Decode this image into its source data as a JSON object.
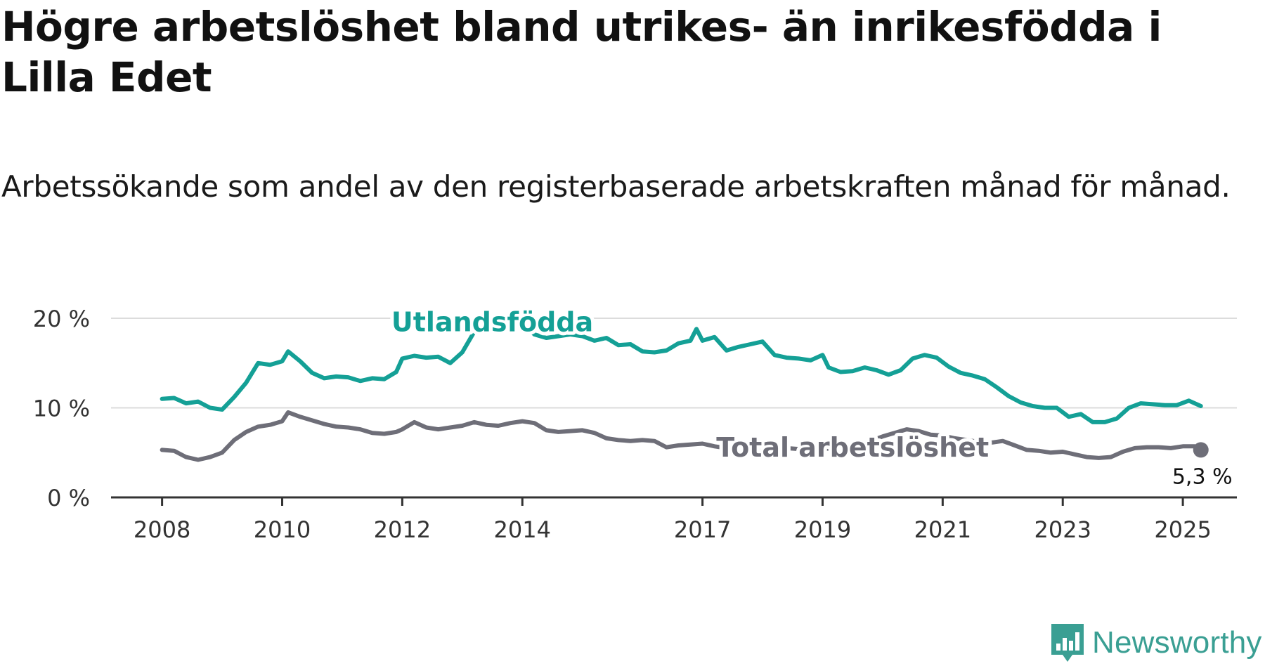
{
  "title": "Högre arbetslöshet bland utrikes- än inrikesfödda i Lilla Edet",
  "subtitle": "Arbetssökande som andel av den registerbaserade arbetskraften månad för månad.",
  "brand": {
    "name": "Newsworthy",
    "color": "#3a9f93"
  },
  "chart_data": {
    "type": "line",
    "y_ticks": [
      "20 %",
      "10 %",
      "0 %"
    ],
    "y_tick_values": [
      20,
      10,
      0
    ],
    "ylim": [
      0,
      20
    ],
    "x_tick_labels": [
      "2008",
      "2010",
      "2012",
      "2014",
      "2017",
      "2019",
      "2021",
      "2023",
      "2025"
    ],
    "x_tick_values": [
      2008.0,
      2010.0,
      2012.0,
      2014.0,
      2017.0,
      2019.0,
      2021.0,
      2023.0,
      2025.0
    ],
    "xlim": [
      2007.15,
      2025.9
    ],
    "grid": true,
    "end_label": "5,3 %",
    "series": [
      {
        "name": "Utlandsfödda",
        "color": "#14a096",
        "points": [
          [
            2008.0,
            11.0
          ],
          [
            2008.2,
            11.1
          ],
          [
            2008.4,
            10.5
          ],
          [
            2008.6,
            10.7
          ],
          [
            2008.8,
            10.0
          ],
          [
            2009.0,
            9.8
          ],
          [
            2009.2,
            11.2
          ],
          [
            2009.4,
            12.8
          ],
          [
            2009.6,
            15.0
          ],
          [
            2009.8,
            14.8
          ],
          [
            2010.0,
            15.2
          ],
          [
            2010.1,
            16.3
          ],
          [
            2010.3,
            15.2
          ],
          [
            2010.5,
            13.9
          ],
          [
            2010.7,
            13.3
          ],
          [
            2010.9,
            13.5
          ],
          [
            2011.1,
            13.4
          ],
          [
            2011.3,
            13.0
          ],
          [
            2011.5,
            13.3
          ],
          [
            2011.7,
            13.2
          ],
          [
            2011.9,
            14.0
          ],
          [
            2012.0,
            15.5
          ],
          [
            2012.2,
            15.8
          ],
          [
            2012.4,
            15.6
          ],
          [
            2012.6,
            15.7
          ],
          [
            2012.8,
            15.0
          ],
          [
            2013.0,
            16.2
          ],
          [
            2013.2,
            18.5
          ],
          [
            2013.4,
            19.2
          ],
          [
            2013.6,
            19.5
          ],
          [
            2013.8,
            19.4
          ],
          [
            2014.0,
            19.6
          ],
          [
            2014.2,
            18.2
          ],
          [
            2014.4,
            17.8
          ],
          [
            2014.6,
            18.0
          ],
          [
            2014.8,
            18.2
          ],
          [
            2015.0,
            18.0
          ],
          [
            2015.2,
            17.5
          ],
          [
            2015.4,
            17.8
          ],
          [
            2015.6,
            17.0
          ],
          [
            2015.8,
            17.1
          ],
          [
            2016.0,
            16.3
          ],
          [
            2016.2,
            16.2
          ],
          [
            2016.4,
            16.4
          ],
          [
            2016.6,
            17.2
          ],
          [
            2016.8,
            17.5
          ],
          [
            2016.9,
            18.8
          ],
          [
            2017.0,
            17.5
          ],
          [
            2017.2,
            17.9
          ],
          [
            2017.4,
            16.4
          ],
          [
            2017.6,
            16.8
          ],
          [
            2017.8,
            17.1
          ],
          [
            2018.0,
            17.4
          ],
          [
            2018.2,
            15.9
          ],
          [
            2018.4,
            15.6
          ],
          [
            2018.6,
            15.5
          ],
          [
            2018.8,
            15.3
          ],
          [
            2019.0,
            15.9
          ],
          [
            2019.1,
            14.5
          ],
          [
            2019.3,
            14.0
          ],
          [
            2019.5,
            14.1
          ],
          [
            2019.7,
            14.5
          ],
          [
            2019.9,
            14.2
          ],
          [
            2020.1,
            13.7
          ],
          [
            2020.3,
            14.2
          ],
          [
            2020.5,
            15.5
          ],
          [
            2020.7,
            15.9
          ],
          [
            2020.9,
            15.6
          ],
          [
            2021.1,
            14.6
          ],
          [
            2021.3,
            13.9
          ],
          [
            2021.5,
            13.6
          ],
          [
            2021.7,
            13.2
          ],
          [
            2021.9,
            12.3
          ],
          [
            2022.1,
            11.3
          ],
          [
            2022.3,
            10.6
          ],
          [
            2022.5,
            10.2
          ],
          [
            2022.7,
            10.0
          ],
          [
            2022.9,
            10.0
          ],
          [
            2023.1,
            9.0
          ],
          [
            2023.3,
            9.3
          ],
          [
            2023.5,
            8.4
          ],
          [
            2023.7,
            8.4
          ],
          [
            2023.9,
            8.8
          ],
          [
            2024.1,
            10.0
          ],
          [
            2024.3,
            10.5
          ],
          [
            2024.5,
            10.4
          ],
          [
            2024.7,
            10.3
          ],
          [
            2024.9,
            10.3
          ],
          [
            2025.1,
            10.8
          ],
          [
            2025.3,
            10.2
          ]
        ]
      },
      {
        "name": "Total arbetslöshet",
        "color": "#6e6e78",
        "points": [
          [
            2008.0,
            5.3
          ],
          [
            2008.2,
            5.2
          ],
          [
            2008.4,
            4.5
          ],
          [
            2008.6,
            4.2
          ],
          [
            2008.8,
            4.5
          ],
          [
            2009.0,
            5.0
          ],
          [
            2009.2,
            6.4
          ],
          [
            2009.4,
            7.3
          ],
          [
            2009.6,
            7.9
          ],
          [
            2009.8,
            8.1
          ],
          [
            2010.0,
            8.5
          ],
          [
            2010.1,
            9.5
          ],
          [
            2010.3,
            9.0
          ],
          [
            2010.5,
            8.6
          ],
          [
            2010.7,
            8.2
          ],
          [
            2010.9,
            7.9
          ],
          [
            2011.1,
            7.8
          ],
          [
            2011.3,
            7.6
          ],
          [
            2011.5,
            7.2
          ],
          [
            2011.7,
            7.1
          ],
          [
            2011.9,
            7.3
          ],
          [
            2012.0,
            7.6
          ],
          [
            2012.2,
            8.4
          ],
          [
            2012.4,
            7.8
          ],
          [
            2012.6,
            7.6
          ],
          [
            2012.8,
            7.8
          ],
          [
            2013.0,
            8.0
          ],
          [
            2013.2,
            8.4
          ],
          [
            2013.4,
            8.1
          ],
          [
            2013.6,
            8.0
          ],
          [
            2013.8,
            8.3
          ],
          [
            2014.0,
            8.5
          ],
          [
            2014.2,
            8.3
          ],
          [
            2014.4,
            7.5
          ],
          [
            2014.6,
            7.3
          ],
          [
            2014.8,
            7.4
          ],
          [
            2015.0,
            7.5
          ],
          [
            2015.2,
            7.2
          ],
          [
            2015.4,
            6.6
          ],
          [
            2015.6,
            6.4
          ],
          [
            2015.8,
            6.3
          ],
          [
            2016.0,
            6.4
          ],
          [
            2016.2,
            6.3
          ],
          [
            2016.4,
            5.6
          ],
          [
            2016.6,
            5.8
          ],
          [
            2016.8,
            5.9
          ],
          [
            2017.0,
            6.0
          ],
          [
            2017.2,
            5.7
          ],
          [
            2017.4,
            5.5
          ],
          [
            2017.6,
            5.4
          ],
          [
            2017.8,
            5.6
          ],
          [
            2018.0,
            5.4
          ],
          [
            2018.2,
            5.5
          ],
          [
            2018.4,
            5.5
          ],
          [
            2018.6,
            5.4
          ],
          [
            2018.8,
            5.2
          ],
          [
            2019.0,
            5.4
          ],
          [
            2019.2,
            5.5
          ],
          [
            2019.4,
            5.7
          ],
          [
            2019.6,
            6.0
          ],
          [
            2019.8,
            6.3
          ],
          [
            2020.0,
            6.8
          ],
          [
            2020.2,
            7.2
          ],
          [
            2020.4,
            7.6
          ],
          [
            2020.6,
            7.4
          ],
          [
            2020.8,
            7.0
          ],
          [
            2021.0,
            6.9
          ],
          [
            2021.2,
            6.6
          ],
          [
            2021.4,
            6.4
          ],
          [
            2021.6,
            6.2
          ],
          [
            2021.8,
            6.1
          ],
          [
            2022.0,
            6.3
          ],
          [
            2022.2,
            5.8
          ],
          [
            2022.4,
            5.3
          ],
          [
            2022.6,
            5.2
          ],
          [
            2022.8,
            5.0
          ],
          [
            2023.0,
            5.1
          ],
          [
            2023.2,
            4.8
          ],
          [
            2023.4,
            4.5
          ],
          [
            2023.6,
            4.4
          ],
          [
            2023.8,
            4.5
          ],
          [
            2024.0,
            5.1
          ],
          [
            2024.2,
            5.5
          ],
          [
            2024.4,
            5.6
          ],
          [
            2024.6,
            5.6
          ],
          [
            2024.8,
            5.5
          ],
          [
            2025.0,
            5.7
          ],
          [
            2025.2,
            5.7
          ],
          [
            2025.3,
            5.3
          ]
        ]
      }
    ]
  }
}
